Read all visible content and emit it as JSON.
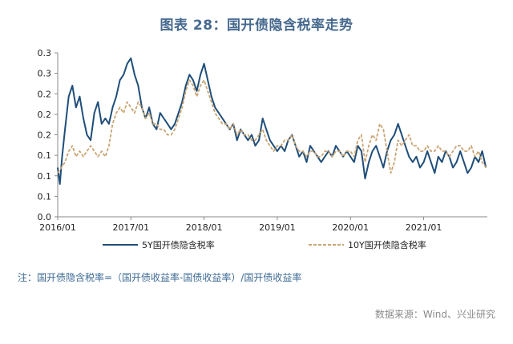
{
  "chart_data": {
    "type": "line",
    "title": "图表 28：国开债隐含税率走势",
    "xlabel": "",
    "ylabel": "",
    "ylim": [
      0.0,
      0.3
    ],
    "y_ticks": [
      "0.3",
      "0.3",
      "0.2",
      "0.2",
      "0.2",
      "0.1",
      "0.1",
      "0.1",
      "0.0"
    ],
    "x_ticks": [
      "2016/01",
      "2017/01",
      "2018/01",
      "2019/01",
      "2020/01",
      "2021/01"
    ],
    "x_range": [
      2016.0,
      2021.87
    ],
    "series": [
      {
        "name": "5Y国开债隐含税率",
        "color": "#1f4e79",
        "style": "solid",
        "x": [
          2016.0,
          2016.03,
          2016.06,
          2016.1,
          2016.15,
          2016.2,
          2016.25,
          2016.3,
          2016.35,
          2016.4,
          2016.45,
          2016.5,
          2016.55,
          2016.6,
          2016.65,
          2016.7,
          2016.75,
          2016.8,
          2016.85,
          2016.9,
          2016.95,
          2017.0,
          2017.05,
          2017.1,
          2017.15,
          2017.2,
          2017.25,
          2017.3,
          2017.35,
          2017.4,
          2017.45,
          2017.5,
          2017.55,
          2017.6,
          2017.65,
          2017.7,
          2017.75,
          2017.8,
          2017.85,
          2017.9,
          2017.95,
          2018.0,
          2018.05,
          2018.1,
          2018.15,
          2018.2,
          2018.25,
          2018.3,
          2018.35,
          2018.4,
          2018.45,
          2018.5,
          2018.55,
          2018.6,
          2018.65,
          2018.7,
          2018.75,
          2018.8,
          2018.85,
          2018.9,
          2018.95,
          2019.0,
          2019.05,
          2019.1,
          2019.15,
          2019.2,
          2019.25,
          2019.3,
          2019.35,
          2019.4,
          2019.45,
          2019.5,
          2019.55,
          2019.6,
          2019.65,
          2019.7,
          2019.75,
          2019.8,
          2019.85,
          2019.9,
          2019.95,
          2020.0,
          2020.05,
          2020.1,
          2020.15,
          2020.2,
          2020.25,
          2020.3,
          2020.35,
          2020.4,
          2020.45,
          2020.5,
          2020.55,
          2020.6,
          2020.65,
          2020.7,
          2020.75,
          2020.8,
          2020.85,
          2020.9,
          2020.95,
          2021.0,
          2021.05,
          2021.1,
          2021.15,
          2021.2,
          2021.25,
          2021.3,
          2021.35,
          2021.4,
          2021.45,
          2021.5,
          2021.55,
          2021.6,
          2021.65,
          2021.7,
          2021.75,
          2021.8,
          2021.85
        ],
        "values": [
          0.09,
          0.06,
          0.11,
          0.16,
          0.22,
          0.24,
          0.2,
          0.22,
          0.18,
          0.15,
          0.14,
          0.19,
          0.21,
          0.17,
          0.18,
          0.17,
          0.2,
          0.22,
          0.25,
          0.26,
          0.28,
          0.29,
          0.26,
          0.24,
          0.2,
          0.18,
          0.2,
          0.17,
          0.16,
          0.19,
          0.18,
          0.17,
          0.16,
          0.17,
          0.19,
          0.21,
          0.24,
          0.26,
          0.25,
          0.23,
          0.26,
          0.28,
          0.25,
          0.22,
          0.2,
          0.19,
          0.18,
          0.17,
          0.16,
          0.17,
          0.14,
          0.16,
          0.15,
          0.14,
          0.15,
          0.13,
          0.14,
          0.18,
          0.16,
          0.14,
          0.13,
          0.12,
          0.13,
          0.12,
          0.14,
          0.15,
          0.13,
          0.11,
          0.12,
          0.1,
          0.13,
          0.12,
          0.11,
          0.1,
          0.11,
          0.12,
          0.11,
          0.13,
          0.12,
          0.11,
          0.12,
          0.11,
          0.1,
          0.13,
          0.12,
          0.07,
          0.1,
          0.12,
          0.13,
          0.11,
          0.09,
          0.12,
          0.14,
          0.15,
          0.17,
          0.15,
          0.13,
          0.11,
          0.1,
          0.11,
          0.09,
          0.1,
          0.12,
          0.1,
          0.08,
          0.11,
          0.1,
          0.12,
          0.11,
          0.09,
          0.1,
          0.12,
          0.1,
          0.08,
          0.09,
          0.11,
          0.1,
          0.12,
          0.09
        ]
      },
      {
        "name": "10Y国开债隐含税率",
        "color": "#c9a574",
        "style": "dashed",
        "x": [
          2016.0,
          2016.05,
          2016.1,
          2016.15,
          2016.2,
          2016.25,
          2016.3,
          2016.35,
          2016.4,
          2016.45,
          2016.5,
          2016.55,
          2016.6,
          2016.65,
          2016.7,
          2016.75,
          2016.8,
          2016.85,
          2016.9,
          2016.95,
          2017.0,
          2017.05,
          2017.1,
          2017.15,
          2017.2,
          2017.25,
          2017.3,
          2017.35,
          2017.4,
          2017.45,
          2017.5,
          2017.55,
          2017.6,
          2017.65,
          2017.7,
          2017.75,
          2017.8,
          2017.85,
          2017.9,
          2017.95,
          2018.0,
          2018.05,
          2018.1,
          2018.15,
          2018.2,
          2018.25,
          2018.3,
          2018.35,
          2018.4,
          2018.45,
          2018.5,
          2018.55,
          2018.6,
          2018.65,
          2018.7,
          2018.75,
          2018.8,
          2018.85,
          2018.9,
          2018.95,
          2019.0,
          2019.05,
          2019.1,
          2019.15,
          2019.2,
          2019.25,
          2019.3,
          2019.35,
          2019.4,
          2019.45,
          2019.5,
          2019.55,
          2019.6,
          2019.65,
          2019.7,
          2019.75,
          2019.8,
          2019.85,
          2019.9,
          2019.95,
          2020.0,
          2020.05,
          2020.1,
          2020.15,
          2020.2,
          2020.25,
          2020.3,
          2020.35,
          2020.4,
          2020.45,
          2020.5,
          2020.55,
          2020.6,
          2020.65,
          2020.7,
          2020.75,
          2020.8,
          2020.85,
          2020.9,
          2020.95,
          2021.0,
          2021.05,
          2021.1,
          2021.15,
          2021.2,
          2021.25,
          2021.3,
          2021.35,
          2021.4,
          2021.45,
          2021.5,
          2021.55,
          2021.6,
          2021.65,
          2021.7,
          2021.75,
          2021.8,
          2021.85
        ],
        "values": [
          0.08,
          0.09,
          0.1,
          0.12,
          0.13,
          0.11,
          0.12,
          0.11,
          0.12,
          0.13,
          0.12,
          0.11,
          0.12,
          0.11,
          0.13,
          0.17,
          0.19,
          0.2,
          0.19,
          0.21,
          0.2,
          0.19,
          0.21,
          0.2,
          0.18,
          0.19,
          0.17,
          0.17,
          0.16,
          0.16,
          0.15,
          0.15,
          0.16,
          0.18,
          0.2,
          0.23,
          0.25,
          0.24,
          0.22,
          0.24,
          0.25,
          0.23,
          0.21,
          0.19,
          0.18,
          0.17,
          0.17,
          0.16,
          0.17,
          0.15,
          0.16,
          0.15,
          0.15,
          0.14,
          0.14,
          0.15,
          0.16,
          0.14,
          0.13,
          0.12,
          0.13,
          0.13,
          0.14,
          0.14,
          0.15,
          0.13,
          0.12,
          0.12,
          0.11,
          0.12,
          0.12,
          0.11,
          0.11,
          0.12,
          0.12,
          0.11,
          0.12,
          0.12,
          0.11,
          0.12,
          0.12,
          0.11,
          0.14,
          0.15,
          0.1,
          0.13,
          0.15,
          0.14,
          0.17,
          0.16,
          0.12,
          0.08,
          0.1,
          0.14,
          0.13,
          0.14,
          0.15,
          0.13,
          0.13,
          0.12,
          0.12,
          0.13,
          0.12,
          0.12,
          0.13,
          0.12,
          0.12,
          0.11,
          0.12,
          0.13,
          0.13,
          0.12,
          0.12,
          0.13,
          0.11,
          0.12,
          0.1,
          0.09
        ]
      }
    ],
    "legend": "bottom"
  },
  "note": "注：国开债隐含税率=（国开债收益率-国债收益率）/国开债收益率",
  "source": "数据来源：Wind、兴业研究"
}
